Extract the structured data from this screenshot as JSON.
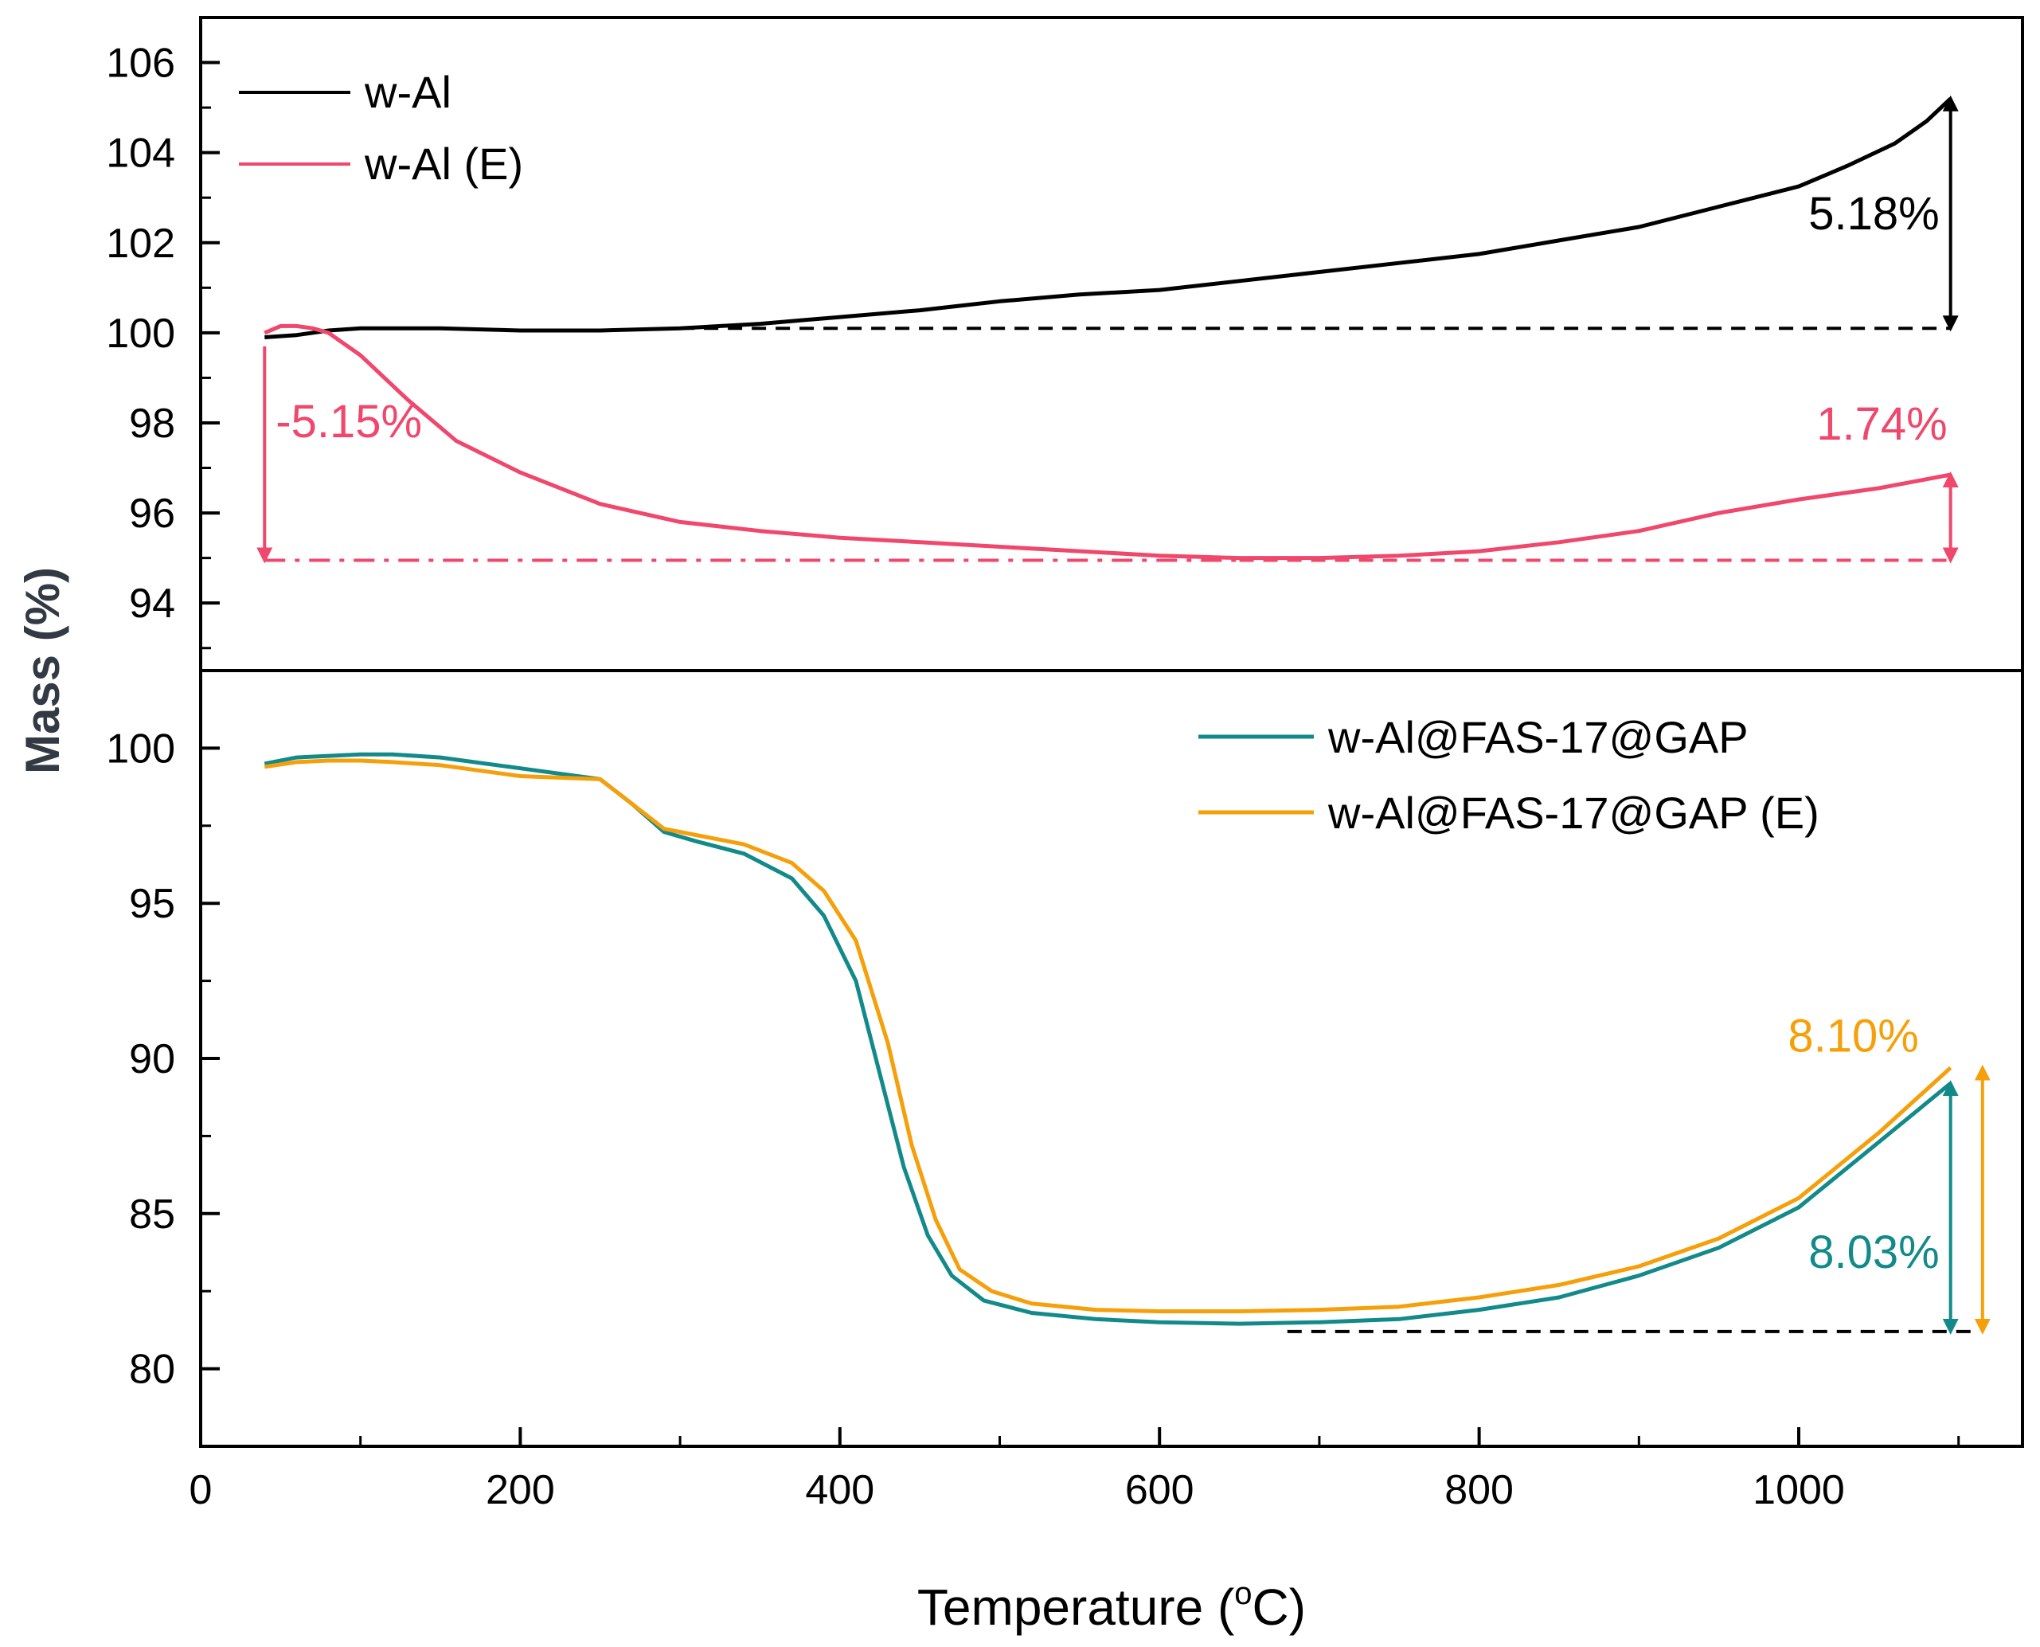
{
  "chart_data": [
    {
      "panel": "top",
      "type": "line",
      "ylabel": "Mass (%)",
      "xlim": [
        0,
        1140
      ],
      "ylim": [
        92.5,
        107
      ],
      "yticks": [
        94,
        96,
        98,
        100,
        102,
        104,
        106
      ],
      "legend_position": "top-left",
      "series": [
        {
          "name": "w-Al",
          "color": "#000000",
          "x": [
            40,
            60,
            80,
            100,
            150,
            200,
            250,
            300,
            350,
            400,
            450,
            500,
            550,
            600,
            650,
            700,
            750,
            800,
            850,
            900,
            950,
            1000,
            1030,
            1060,
            1080,
            1095
          ],
          "y": [
            99.9,
            99.95,
            100.05,
            100.1,
            100.1,
            100.05,
            100.05,
            100.1,
            100.2,
            100.35,
            100.5,
            100.7,
            100.85,
            100.95,
            101.15,
            101.35,
            101.55,
            101.75,
            102.05,
            102.35,
            102.8,
            103.25,
            103.7,
            104.2,
            104.7,
            105.2
          ]
        },
        {
          "name": "w-Al (E)",
          "color": "#f0476c",
          "x": [
            40,
            50,
            60,
            70,
            80,
            100,
            130,
            160,
            200,
            250,
            300,
            350,
            400,
            450,
            500,
            550,
            600,
            650,
            700,
            750,
            800,
            850,
            900,
            950,
            1000,
            1050,
            1080,
            1095
          ],
          "y": [
            100.0,
            100.15,
            100.15,
            100.1,
            100.0,
            99.5,
            98.5,
            97.6,
            96.9,
            96.2,
            95.8,
            95.6,
            95.45,
            95.35,
            95.25,
            95.15,
            95.05,
            95.0,
            95.0,
            95.05,
            95.15,
            95.35,
            95.6,
            96.0,
            96.3,
            96.55,
            96.75,
            96.85
          ]
        }
      ],
      "reference_lines": [
        {
          "y": 100.1,
          "x_from": 300,
          "x_to": 1095,
          "style": "dashed",
          "color": "#000000"
        },
        {
          "y": 94.95,
          "x_from": 40,
          "x_to": 650,
          "style": "dashdot",
          "color": "#f0476c"
        },
        {
          "y": 94.95,
          "x_from": 650,
          "x_to": 1095,
          "style": "dashed",
          "color": "#f0476c"
        }
      ],
      "annotations": [
        {
          "text": "5.18%",
          "color": "#000000",
          "arrow_x": 1095,
          "arrow_from": 100.1,
          "arrow_to": 105.2,
          "heads": "both"
        },
        {
          "text": "-5.15%",
          "color": "#f0476c",
          "arrow_x": 40,
          "arrow_from": 99.7,
          "arrow_to": 94.95,
          "heads": "end"
        },
        {
          "text": "1.74%",
          "color": "#f0476c",
          "arrow_x": 1095,
          "arrow_from": 94.95,
          "arrow_to": 96.85,
          "heads": "both"
        }
      ]
    },
    {
      "panel": "bottom",
      "type": "line",
      "xlabel": "Temperature (oC)",
      "xlim": [
        0,
        1140
      ],
      "ylim": [
        77.5,
        102.5
      ],
      "yticks": [
        80,
        85,
        90,
        95,
        100
      ],
      "xticks": [
        0,
        200,
        400,
        600,
        800,
        1000
      ],
      "legend_position": "top-right",
      "series": [
        {
          "name": "w-Al@FAS-17@GAP",
          "color": "#138a8a",
          "x": [
            40,
            60,
            80,
            100,
            120,
            150,
            200,
            250,
            270,
            290,
            310,
            340,
            370,
            390,
            410,
            425,
            440,
            455,
            470,
            490,
            520,
            560,
            600,
            650,
            700,
            750,
            800,
            850,
            900,
            950,
            1000,
            1050,
            1095
          ],
          "y": [
            99.5,
            99.7,
            99.75,
            99.8,
            99.8,
            99.7,
            99.35,
            99.0,
            98.2,
            97.3,
            97.0,
            96.6,
            95.8,
            94.6,
            92.5,
            89.5,
            86.5,
            84.3,
            83.0,
            82.2,
            81.8,
            81.6,
            81.5,
            81.45,
            81.5,
            81.6,
            81.9,
            82.3,
            83.0,
            83.9,
            85.2,
            87.3,
            89.2
          ]
        },
        {
          "name": "w-Al@FAS-17@GAP (E)",
          "color": "#f5a00a",
          "x": [
            40,
            60,
            80,
            100,
            120,
            150,
            200,
            250,
            270,
            290,
            310,
            340,
            370,
            390,
            410,
            430,
            445,
            460,
            475,
            495,
            520,
            560,
            600,
            650,
            700,
            750,
            800,
            850,
            900,
            950,
            1000,
            1050,
            1095
          ],
          "y": [
            99.4,
            99.55,
            99.6,
            99.6,
            99.55,
            99.45,
            99.1,
            99.0,
            98.2,
            97.4,
            97.2,
            96.9,
            96.3,
            95.4,
            93.8,
            90.5,
            87.2,
            84.8,
            83.2,
            82.5,
            82.1,
            81.9,
            81.85,
            81.85,
            81.9,
            82.0,
            82.3,
            82.7,
            83.3,
            84.2,
            85.5,
            87.6,
            89.7
          ]
        }
      ],
      "reference_lines": [
        {
          "y": 81.2,
          "x_from": 680,
          "x_to": 1110,
          "style": "dashed",
          "color": "#000000"
        }
      ],
      "annotations": [
        {
          "text": "8.10%",
          "color": "#f5a00a",
          "arrow_x": 1115,
          "arrow_from": 81.2,
          "arrow_to": 89.7,
          "heads": "both"
        },
        {
          "text": "8.03%",
          "color": "#138a8a",
          "arrow_x": 1095,
          "arrow_from": 81.2,
          "arrow_to": 89.2,
          "heads": "both"
        }
      ]
    }
  ],
  "labels": {
    "ylabel": "Mass (%)",
    "xlabel_main": "Temperature (",
    "xlabel_sup": "o",
    "xlabel_unit": "C)"
  },
  "legends": {
    "top": [
      "w-Al",
      "w-Al (E)"
    ],
    "bottom": [
      "w-Al@FAS-17@GAP",
      "w-Al@FAS-17@GAP (E)"
    ]
  },
  "colors": {
    "black": "#000000",
    "pink": "#f0476c",
    "teal": "#138a8a",
    "orange": "#f5a00a"
  }
}
